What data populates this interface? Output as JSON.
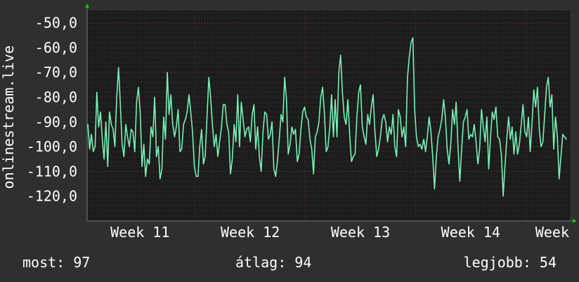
{
  "colors": {
    "background": "#2f2f2f",
    "plot_background": "#1b1b1b",
    "grid_minor": "#333333",
    "grid_major": "#6b2f2f",
    "line": "#78f0b6",
    "text": "#ffffff",
    "axis_arrow": "#00cc00"
  },
  "chart_data": {
    "type": "line",
    "ylabel": "onlinestream.live",
    "ylim": [
      -130,
      -45
    ],
    "y_ticks": [
      -50,
      -60,
      -70,
      -80,
      -90,
      -100,
      -110,
      -120
    ],
    "y_tick_labels": [
      "-50,0",
      "-60,0",
      "-70,0",
      "-80,0",
      "-90,0",
      "-100,0",
      "-110,0",
      "-120,0"
    ],
    "xlim": [
      10.52,
      14.9
    ],
    "x_ticks": [
      11,
      12,
      13,
      14,
      15
    ],
    "x_tick_labels": [
      "Week 11",
      "Week 12",
      "Week 13",
      "Week 14",
      "Week"
    ],
    "grid": true,
    "series": [
      {
        "values": [
          -91,
          -101,
          -95,
          -102,
          -100,
          -78,
          -92,
          -86,
          -97,
          -105,
          -90,
          -108,
          -86,
          -91,
          -93,
          -100,
          -80,
          -68,
          -83,
          -99,
          -104,
          -91,
          -96,
          -100,
          -93,
          -94,
          -102,
          -82,
          -76,
          -86,
          -108,
          -99,
          -112,
          -105,
          -107,
          -92,
          -96,
          -80,
          -104,
          -100,
          -113,
          -109,
          -88,
          -97,
          -70,
          -87,
          -79,
          -91,
          -96,
          -92,
          -85,
          -102,
          -101,
          -91,
          -89,
          -86,
          -79,
          -86,
          -94,
          -108,
          -112,
          -112,
          -100,
          -93,
          -107,
          -104,
          -88,
          -72,
          -80,
          -91,
          -100,
          -95,
          -104,
          -98,
          -92,
          -83,
          -83,
          -91,
          -94,
          -111,
          -105,
          -91,
          -98,
          -79,
          -100,
          -82,
          -89,
          -96,
          -93,
          -92,
          -98,
          -87,
          -83,
          -101,
          -92,
          -104,
          -110,
          -94,
          -86,
          -87,
          -97,
          -95,
          -90,
          -109,
          -112,
          -106,
          -97,
          -87,
          -90,
          -72,
          -81,
          -103,
          -99,
          -92,
          -95,
          -93,
          -106,
          -103,
          -93,
          -86,
          -84,
          -88,
          -89,
          -97,
          -101,
          -111,
          -96,
          -94,
          -90,
          -80,
          -76,
          -86,
          -102,
          -100,
          -92,
          -79,
          -96,
          -81,
          -96,
          -70,
          -63,
          -78,
          -88,
          -91,
          -81,
          -95,
          -106,
          -104,
          -103,
          -88,
          -78,
          -75,
          -92,
          -96,
          -99,
          -87,
          -91,
          -84,
          -79,
          -94,
          -104,
          -101,
          -96,
          -89,
          -87,
          -90,
          -98,
          -92,
          -95,
          -87,
          -100,
          -104,
          -85,
          -88,
          -96,
          -92,
          -100,
          -72,
          -64,
          -58,
          -56,
          -85,
          -96,
          -100,
          -99,
          -101,
          -97,
          -102,
          -96,
          -88,
          -94,
          -104,
          -117,
          -104,
          -96,
          -93,
          -89,
          -81,
          -88,
          -101,
          -107,
          -99,
          -85,
          -91,
          -82,
          -100,
          -114,
          -101,
          -90,
          -88,
          -85,
          -97,
          -95,
          -96,
          -91,
          -98,
          -107,
          -101,
          -85,
          -92,
          -98,
          -88,
          -109,
          -96,
          -86,
          -89,
          -84,
          -96,
          -97,
          -103,
          -120,
          -108,
          -97,
          -88,
          -97,
          -92,
          -103,
          -94,
          -103,
          -99,
          -91,
          -83,
          -94,
          -96,
          -88,
          -102,
          -90,
          -77,
          -84,
          -76,
          -93,
          -100,
          -98,
          -87,
          -76,
          -72,
          -84,
          -79,
          -101,
          -88,
          -96,
          -113,
          -104,
          -95,
          -96,
          -97
        ]
      }
    ]
  },
  "stats": {
    "current": "most: 97",
    "average": "átlag: 94",
    "best": "legjobb: 54"
  }
}
